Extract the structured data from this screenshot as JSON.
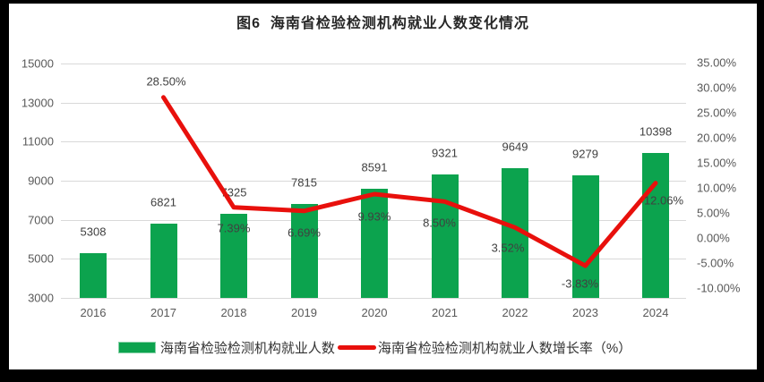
{
  "title": "图6  海南省检验检测机构就业人数变化情况",
  "legend": {
    "bar_label": "海南省检验检测机构就业人数",
    "line_label": "海南省检验检测机构就业人数增长率（%）"
  },
  "colors": {
    "bar": "#0ca34e",
    "line": "#e8100c",
    "grid": "#d9d9d9",
    "axis_text": "#595959",
    "data_label": "#404040",
    "title_text": "#262626",
    "frame_border": "#000000",
    "background": "#ffffff"
  },
  "chart_data": {
    "type": "bar+line combo",
    "categories": [
      "2016",
      "2017",
      "2018",
      "2019",
      "2020",
      "2021",
      "2022",
      "2023",
      "2024"
    ],
    "series": [
      {
        "name": "海南省检验检测机构就业人数",
        "type": "bar",
        "axis": "left",
        "values": [
          5308,
          6821,
          7325,
          7815,
          8591,
          9321,
          9649,
          9279,
          10398
        ],
        "labels": [
          "5308",
          "6821",
          "7325",
          "7815",
          "8591",
          "9321",
          "9649",
          "9279",
          "10398"
        ]
      },
      {
        "name": "海南省检验检测机构就业人数增长率（%）",
        "type": "line",
        "axis": "right",
        "values": [
          null,
          28.5,
          7.39,
          6.69,
          9.93,
          8.5,
          3.52,
          -3.83,
          12.06
        ],
        "labels": [
          null,
          "28.50%",
          "7.39%",
          "6.69%",
          "9.93%",
          "8.50%",
          "3.52%",
          "-3.83%",
          "12.06%"
        ]
      }
    ],
    "left_axis": {
      "min": 3000,
      "max": 15000,
      "step": 2000,
      "ticks": [
        "15000",
        "13000",
        "11000",
        "9000",
        "7000",
        "5000",
        "3000"
      ]
    },
    "right_axis": {
      "min": -10,
      "max": 35,
      "step": 5,
      "ticks": [
        "35.00%",
        "30.00%",
        "25.00%",
        "20.00%",
        "15.00%",
        "10.00%",
        "5.00%",
        "0.00%",
        "-5.00%",
        "-10.00%"
      ]
    },
    "grid": true,
    "legend_position": "bottom",
    "line_label_offsets": [
      null,
      [
        3,
        -18
      ],
      [
        0,
        23
      ],
      [
        0,
        24
      ],
      [
        0,
        25
      ],
      [
        -6,
        24
      ],
      [
        -8,
        23
      ],
      [
        -6,
        20
      ],
      [
        9,
        19
      ]
    ]
  }
}
